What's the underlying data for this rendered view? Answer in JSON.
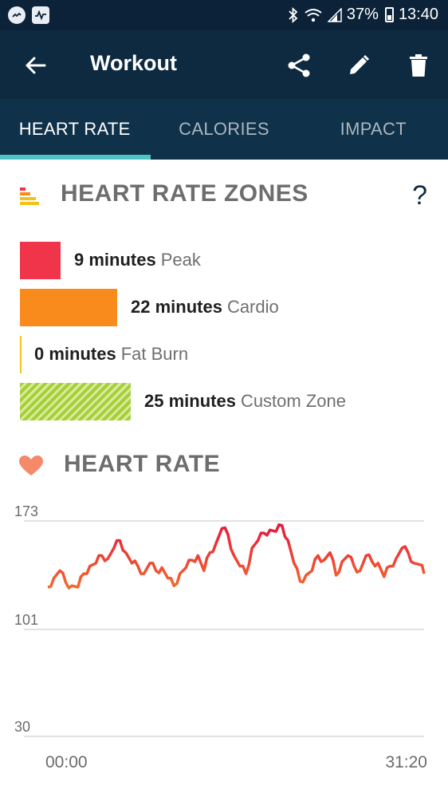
{
  "status_bar": {
    "battery": "37%",
    "time": "13:40",
    "icons": [
      "messenger-icon",
      "activity-icon",
      "bluetooth-icon",
      "wifi-icon",
      "signal-icon",
      "battery-icon"
    ]
  },
  "app_bar": {
    "title": "Workout",
    "back_icon": "arrow-left-icon",
    "actions": [
      "share-icon",
      "edit-icon",
      "delete-icon"
    ]
  },
  "tabs": [
    {
      "label": "HEART RATE",
      "active": true
    },
    {
      "label": "CALORIES",
      "active": false
    },
    {
      "label": "IMPACT",
      "active": false
    }
  ],
  "zones_section": {
    "title": "HEART RATE ZONES",
    "help": "?",
    "zones": [
      {
        "minutes": "9 minutes",
        "name": "Peak",
        "color": "#f0354a",
        "value": 9
      },
      {
        "minutes": "22 minutes",
        "name": "Cardio",
        "color": "#f98b1d",
        "value": 22
      },
      {
        "minutes": "0 minutes",
        "name": "Fat Burn",
        "color": "#f2c21b",
        "value": 0
      },
      {
        "minutes": "25 minutes",
        "name": "Custom Zone",
        "color": "#a5cf3a",
        "value": 25
      }
    ]
  },
  "heart_rate_section": {
    "title": "HEART RATE"
  },
  "chart_data": {
    "type": "line",
    "title": "",
    "y_ticks": [
      "173",
      "101",
      "30"
    ],
    "ylim": [
      30,
      173
    ],
    "x_ticks": [
      "00:00",
      "31:20"
    ],
    "xlim_minutes": [
      0,
      31.33
    ],
    "grid": true,
    "series": [
      {
        "color_top": "#e8183c",
        "color_bottom": "#f26a2e",
        "x": [
          0,
          0.5,
          1,
          1.5,
          2,
          2.5,
          3,
          3.5,
          4,
          4.5,
          5,
          5.5,
          6,
          6.5,
          7,
          7.5,
          8,
          8.5,
          9,
          9.5,
          10,
          10.5,
          11,
          11.5,
          12,
          12.5,
          13,
          13.5,
          14,
          14.5,
          15,
          15.5,
          16,
          16.5,
          17,
          17.5,
          18,
          18.5,
          19,
          19.5,
          20,
          20.5,
          21,
          21.5,
          22,
          22.5,
          23,
          23.5,
          24,
          24.5,
          25,
          25.5,
          26,
          26.5,
          27,
          27.5,
          28,
          28.5,
          29,
          29.5,
          30,
          30.5,
          31,
          31.33
        ],
        "y": [
          129,
          135,
          140,
          132,
          130,
          129,
          138,
          143,
          145,
          150,
          148,
          155,
          160,
          152,
          145,
          143,
          138,
          145,
          140,
          142,
          135,
          130,
          138,
          142,
          147,
          150,
          140,
          152,
          158,
          168,
          164,
          150,
          143,
          138,
          155,
          160,
          165,
          167,
          166,
          170,
          160,
          145,
          133,
          137,
          140,
          150,
          147,
          152,
          137,
          146,
          150,
          143,
          140,
          150,
          146,
          145,
          136,
          143,
          148,
          155,
          152,
          145,
          144,
          138
        ]
      }
    ]
  }
}
